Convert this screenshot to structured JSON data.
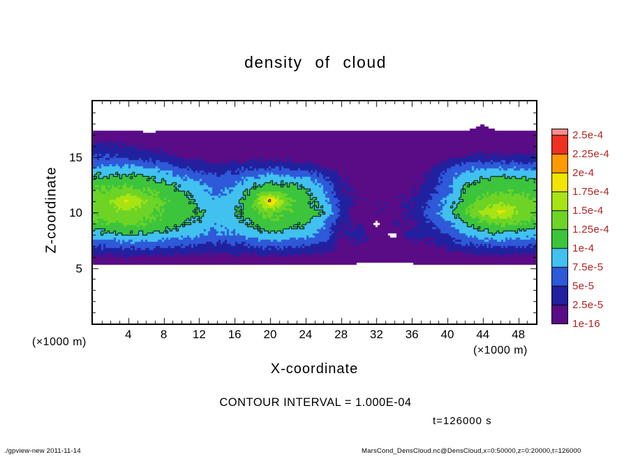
{
  "title": "density of cloud",
  "axes": {
    "x": {
      "label": "X-coordinate",
      "unit": "(×1000 m)",
      "ticks": [
        4,
        8,
        12,
        16,
        20,
        24,
        28,
        32,
        36,
        40,
        44,
        48
      ],
      "range": [
        0,
        50
      ]
    },
    "z": {
      "label": "Z-coordinate",
      "unit": "(×1000 m)",
      "ticks": [
        5,
        10,
        15
      ],
      "range": [
        0,
        20
      ]
    }
  },
  "colorbar": {
    "labels_top_to_bottom": [
      "2.5e-4",
      "2.25e-4",
      "2e-4",
      "1.75e-4",
      "1.5e-4",
      "1.25e-4",
      "1e-4",
      "7.5e-5",
      "5e-5",
      "2.5e-5",
      "1e-16"
    ],
    "label_color": "#b22222"
  },
  "annotations": {
    "contour_interval": "CONTOUR INTERVAL = 1.000E-04",
    "time": "t=126000 s"
  },
  "footer": {
    "left": "./gpview-new  2011-11-14",
    "right": "MarsCond_DensCloud.nc@DensCloud,x=0:50000,z=0:20000,t=126000"
  },
  "chart_data": {
    "type": "heatmap",
    "title": "density of cloud",
    "xlabel": "X-coordinate (×1000 m)",
    "ylabel": "Z-coordinate (×1000 m)",
    "xlim": [
      0,
      50
    ],
    "ylim": [
      0,
      20
    ],
    "contour_interval": 0.0001,
    "time_s": 126000,
    "levels": [
      1e-16,
      2.5e-05,
      5e-05,
      7.5e-05,
      0.0001,
      0.000125,
      0.00015,
      0.000175,
      0.0002,
      0.000225,
      0.00025
    ],
    "colors": [
      "#5a0b86",
      "#21219f",
      "#2e59d8",
      "#41c1f0",
      "#3cc43c",
      "#6dd426",
      "#a8e414",
      "#f0e400",
      "#ff9b00",
      "#ee3220",
      "#fa8c8c"
    ],
    "contour_levels": [
      0.0001,
      0.0002
    ],
    "values_scale": 1e-05,
    "grid": {
      "x_start": 0,
      "x_step": 2,
      "z_start": 4,
      "z_step": 1,
      "values": [
        [
          -1,
          -1,
          -1,
          -1,
          -1,
          -1,
          -1,
          -1,
          -1,
          -1,
          -1,
          -1,
          -1,
          -1,
          -1,
          -1,
          -1,
          -1,
          -1,
          -1,
          -1,
          -1,
          -1,
          -1,
          -1,
          -1
        ],
        [
          -0.5,
          -0.5,
          -0.5,
          -0.5,
          -0.5,
          -0.5,
          -0.5,
          -0.5,
          -0.5,
          -0.5,
          -0.5,
          -0.5,
          -0.5,
          -0.5,
          -0.5,
          -0.5,
          -0.5,
          -0.5,
          -0.5,
          -0.5,
          -0.5,
          -0.5,
          -0.5,
          -0.5,
          -0.5,
          -0.5
        ],
        [
          2,
          2,
          2,
          2,
          2,
          1.8,
          1.8,
          1.6,
          1.8,
          2,
          2,
          2,
          1.8,
          1.6,
          1,
          0.8,
          0.8,
          0.8,
          0.8,
          1,
          1.2,
          1.5,
          1.8,
          1.8,
          1.8,
          1.8
        ],
        [
          5,
          5.5,
          6,
          6,
          5.5,
          5,
          4.5,
          4,
          4.5,
          5,
          5.5,
          5.5,
          5,
          4,
          1.5,
          2,
          1,
          0.8,
          1.5,
          2,
          3,
          4.5,
          5,
          5.5,
          5,
          5
        ],
        [
          9,
          9.5,
          10,
          10,
          9.5,
          8.5,
          8,
          7,
          7.5,
          8.5,
          9.5,
          9,
          8.5,
          6.5,
          2,
          4,
          1,
          -0.5,
          4,
          3,
          5,
          7.5,
          9,
          9.5,
          9,
          8.5
        ],
        [
          12,
          12.5,
          13,
          12.5,
          11.5,
          10.5,
          9.5,
          8,
          9,
          10.5,
          12,
          11,
          10.5,
          8,
          3,
          2,
          -0.5,
          3,
          1.5,
          5,
          7,
          10,
          12,
          13,
          12.5,
          11.5
        ],
        [
          13,
          14,
          14.5,
          13.5,
          12,
          11,
          10,
          8.5,
          9.5,
          11.5,
          13.5,
          12,
          11.5,
          10,
          5,
          -0.3,
          2.5,
          1.5,
          3,
          6,
          9,
          12.5,
          15.5,
          18,
          15,
          13
        ],
        [
          13.5,
          14.5,
          18,
          14.5,
          12.5,
          11,
          9.5,
          8,
          9,
          12,
          21,
          13,
          11,
          9,
          4,
          2,
          2,
          2,
          2.5,
          5,
          8,
          11,
          13,
          14.5,
          14,
          12.5
        ],
        [
          12.5,
          13,
          13.5,
          12.5,
          11.5,
          10,
          8.5,
          7,
          8,
          10.5,
          12,
          11.5,
          10.5,
          8,
          3,
          1.5,
          1.5,
          1.5,
          2,
          4,
          7,
          10.5,
          11.5,
          12,
          12,
          11.5
        ],
        [
          10.5,
          11,
          11,
          10.5,
          9.5,
          8,
          7,
          6,
          6.5,
          8,
          9,
          8.5,
          8,
          6,
          2.5,
          1.5,
          1.2,
          1.2,
          1.5,
          3,
          6.5,
          9,
          10,
          10.5,
          10.5,
          10
        ],
        [
          8,
          8,
          8,
          7.5,
          7,
          5,
          4,
          3.5,
          4,
          5,
          5,
          4.5,
          4,
          2.5,
          1.2,
          0.8,
          0.8,
          0.8,
          1.2,
          2,
          5,
          7,
          7.5,
          7.5,
          7,
          7
        ],
        [
          5,
          5,
          4.5,
          4,
          3,
          2,
          1.5,
          1.2,
          1.5,
          1.5,
          1.5,
          1.2,
          1,
          0.8,
          0.7,
          0.6,
          0.6,
          0.6,
          0.7,
          0.8,
          1.5,
          2.5,
          3,
          3,
          3,
          3
        ],
        [
          2.8,
          2.8,
          2.5,
          2,
          1.5,
          1,
          0.8,
          0.8,
          0.8,
          0.8,
          0.8,
          0.8,
          0.8,
          0.7,
          0.6,
          0.6,
          0.6,
          0.6,
          0.6,
          0.7,
          0.8,
          1,
          1.2,
          1.2,
          1.2,
          1.2
        ],
        [
          0.6,
          0.6,
          0.6,
          0.3,
          0.4,
          0.6,
          0.6,
          0.6,
          0.6,
          0.6,
          0.6,
          0.6,
          0.6,
          0.6,
          0.6,
          0.6,
          0.6,
          0.6,
          0.6,
          0.6,
          0.6,
          0.6,
          0.6,
          0.6,
          0.6,
          0.6
        ],
        [
          -1,
          -1,
          -1,
          -1,
          -1,
          -1,
          -1,
          -1,
          -1,
          -1,
          -1,
          -1,
          -1,
          -1,
          -1,
          -1,
          -1,
          -1,
          -1,
          -1,
          -1,
          -1,
          0.02,
          -1,
          -1,
          -1
        ],
        [
          -1,
          -1,
          -1,
          -1,
          -1,
          -1,
          -1,
          -1,
          -1,
          -1,
          -1,
          -1,
          -1,
          -1,
          -1,
          -1,
          -1,
          -1,
          -1,
          -1,
          -1,
          -1,
          -1,
          -1,
          -1,
          -1
        ]
      ]
    }
  }
}
